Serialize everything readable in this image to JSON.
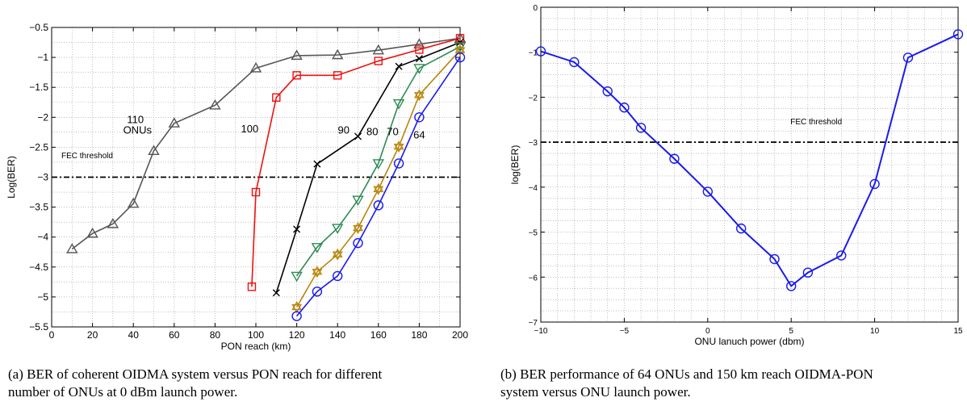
{
  "chart_data": [
    {
      "type": "line",
      "panel": "a",
      "xlabel": "PON reach (km)",
      "ylabel": "Log(BER)",
      "xlim": [
        0,
        200
      ],
      "ylim": [
        -5.5,
        -0.5
      ],
      "xticks": [
        "0",
        "20",
        "40",
        "60",
        "80",
        "100",
        "120",
        "140",
        "160",
        "180",
        "200"
      ],
      "yticks": [
        "-5.5",
        "-5",
        "-4.5",
        "-4",
        "-3.5",
        "-3",
        "-2.5",
        "-2",
        "-1.5",
        "-1",
        "-0.5"
      ],
      "grid": true,
      "threshold": {
        "y": -3,
        "label": "FEC threshold"
      },
      "series": [
        {
          "name": "110 ONUs",
          "color": "#555555",
          "marker": "triangle-up",
          "x": [
            10,
            20,
            30,
            40,
            50,
            60,
            80,
            100,
            120,
            140,
            160,
            180,
            200
          ],
          "y": [
            -4.2,
            -3.94,
            -3.78,
            -3.44,
            -2.56,
            -2.1,
            -1.8,
            -1.18,
            -0.97,
            -0.96,
            -0.88,
            -0.78,
            -0.68
          ]
        },
        {
          "name": "100",
          "color": "#ee1111",
          "marker": "square",
          "x": [
            98,
            100,
            110,
            120,
            140,
            160,
            180,
            200
          ],
          "y": [
            -4.83,
            -3.25,
            -1.67,
            -1.3,
            -1.3,
            -1.06,
            -0.87,
            -0.68
          ]
        },
        {
          "name": "90",
          "color": "#000000",
          "marker": "x",
          "x": [
            110,
            120,
            130,
            150,
            170,
            180,
            200
          ],
          "y": [
            -4.93,
            -3.87,
            -2.78,
            -2.32,
            -1.15,
            -1.02,
            -0.75
          ]
        },
        {
          "name": "80",
          "color": "#2e8b57",
          "marker": "triangle-down",
          "x": [
            120,
            130,
            140,
            150,
            160,
            170,
            180,
            200
          ],
          "y": [
            -4.65,
            -4.17,
            -3.85,
            -3.38,
            -2.77,
            -1.77,
            -1.18,
            -0.82
          ]
        },
        {
          "name": "70",
          "color": "#b8860b",
          "marker": "hexagram",
          "x": [
            120,
            130,
            140,
            150,
            160,
            170,
            180,
            200
          ],
          "y": [
            -5.17,
            -4.58,
            -4.29,
            -3.85,
            -3.2,
            -2.49,
            -1.63,
            -0.88
          ]
        },
        {
          "name": "64",
          "color": "#1a1aee",
          "marker": "circle",
          "x": [
            120,
            130,
            140,
            150,
            160,
            170,
            180,
            200
          ],
          "y": [
            -5.32,
            -4.91,
            -4.65,
            -4.1,
            -3.47,
            -2.77,
            -2.0,
            -1.0
          ]
        }
      ],
      "annotations": [
        {
          "text": "110",
          "x": 41,
          "y": -2.1
        },
        {
          "text": "ONUs",
          "x": 42,
          "y": -2.27
        },
        {
          "text": "100",
          "x": 97,
          "y": -2.25
        },
        {
          "text": "90",
          "x": 143,
          "y": -2.27
        },
        {
          "text": "80",
          "x": 157,
          "y": -2.3
        },
        {
          "text": "70",
          "x": 167,
          "y": -2.3
        },
        {
          "text": "64",
          "x": 180,
          "y": -2.35
        }
      ]
    },
    {
      "type": "line",
      "panel": "b",
      "xlabel": "ONU lanuch power (dbm)",
      "ylabel": "log(BER)",
      "xlim": [
        -10,
        15
      ],
      "ylim": [
        -7,
        0
      ],
      "xticks": [
        "-10",
        "-5",
        "0",
        "5",
        "10",
        "15"
      ],
      "yticks": [
        "-7",
        "-6",
        "-5",
        "-4",
        "-3",
        "-2",
        "-1",
        "0"
      ],
      "grid": true,
      "threshold": {
        "y": -3,
        "label": "FEC threshold"
      },
      "series": [
        {
          "color": "#1a1aee",
          "marker": "circle",
          "x": [
            -10,
            -8,
            -6,
            -5,
            -4,
            -2,
            0,
            2,
            4,
            5,
            6,
            8,
            10,
            12,
            15
          ],
          "y": [
            -0.98,
            -1.22,
            -1.87,
            -2.23,
            -2.68,
            -3.37,
            -4.1,
            -4.92,
            -5.6,
            -6.2,
            -5.9,
            -5.52,
            -3.93,
            -1.12,
            -0.6
          ]
        }
      ],
      "annotations": [
        {
          "text": "FEC threshold",
          "x": 6.5,
          "y": -2.6
        }
      ]
    }
  ],
  "captions": {
    "a_line1": "(a)  BER of coherent OIDMA system versus PON reach for different",
    "a_line2": "number of ONUs at 0 dBm launch power.",
    "b_line1": "(b)  BER performance of 64 ONUs and 150 km reach OIDMA-PON",
    "b_line2": "system versus ONU launch power."
  }
}
